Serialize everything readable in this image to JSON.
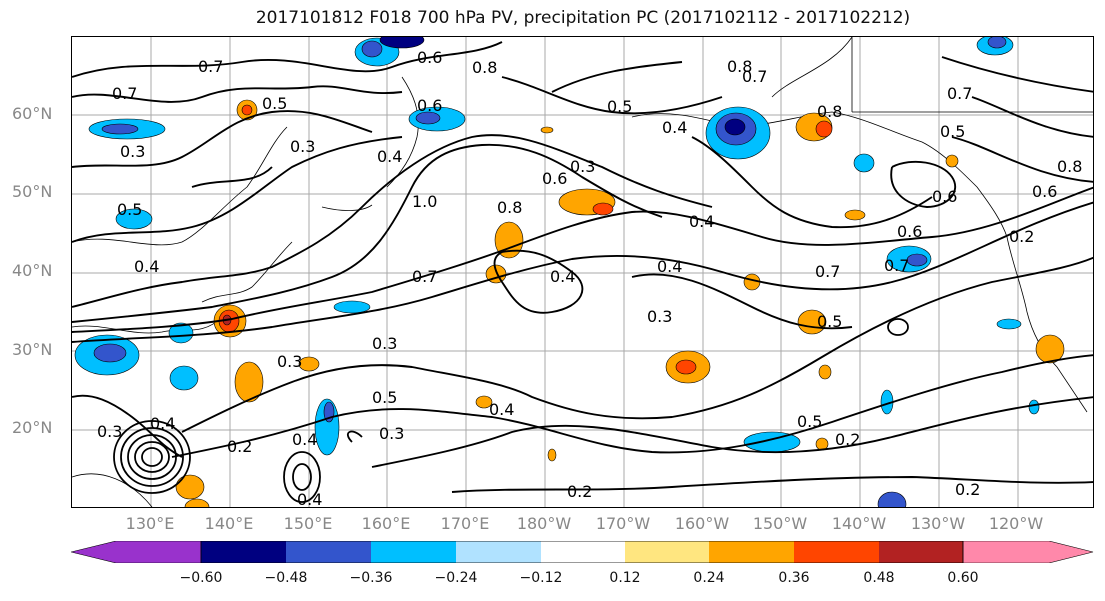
{
  "title": "2017101812 F018 700 hPa PV, precipitation PC (2017102112 - 2017102212)",
  "lat_labels": [
    "60°N",
    "50°N",
    "40°N",
    "30°N",
    "20°N"
  ],
  "lon_labels": [
    "130°E",
    "140°E",
    "150°E",
    "160°E",
    "170°E",
    "180°W",
    "170°W",
    "160°W",
    "150°W",
    "140°W",
    "130°W",
    "120°W"
  ],
  "colorbar": {
    "labels": [
      "−0.60",
      "−0.48",
      "−0.36",
      "−0.24",
      "−0.12",
      "0.12",
      "0.24",
      "0.36",
      "0.48",
      "0.60"
    ],
    "colors": [
      "#9932cc",
      "#000080",
      "#3355cc",
      "#00bfff",
      "#b0e2ff",
      "#ffffff",
      "#ffe680",
      "#ffa500",
      "#ff4500",
      "#b22222",
      "#ff88aa"
    ]
  },
  "contour_labels": [
    "0.7",
    "0.6",
    "0.8",
    "0.5",
    "0.7",
    "0.8",
    "0.4",
    "0.7",
    "0.6",
    "0.5",
    "0.3",
    "0.4",
    "0.6",
    "0.3",
    "1.0",
    "0.8",
    "0.4",
    "0.4",
    "0.3",
    "0.5",
    "0.7",
    "0.6",
    "0.4",
    "0.7",
    "0.6",
    "0.8",
    "0.4",
    "0.3",
    "0.3",
    "0.5",
    "0.3",
    "0.4",
    "0.3",
    "0.4",
    "0.2",
    "0.4",
    "0.5",
    "0.2",
    "0.2",
    "0.2",
    "0.4",
    "0.3",
    "0.5",
    "0.2",
    "0.7",
    "0.8",
    "0.7",
    "0.5",
    "0.6"
  ]
}
